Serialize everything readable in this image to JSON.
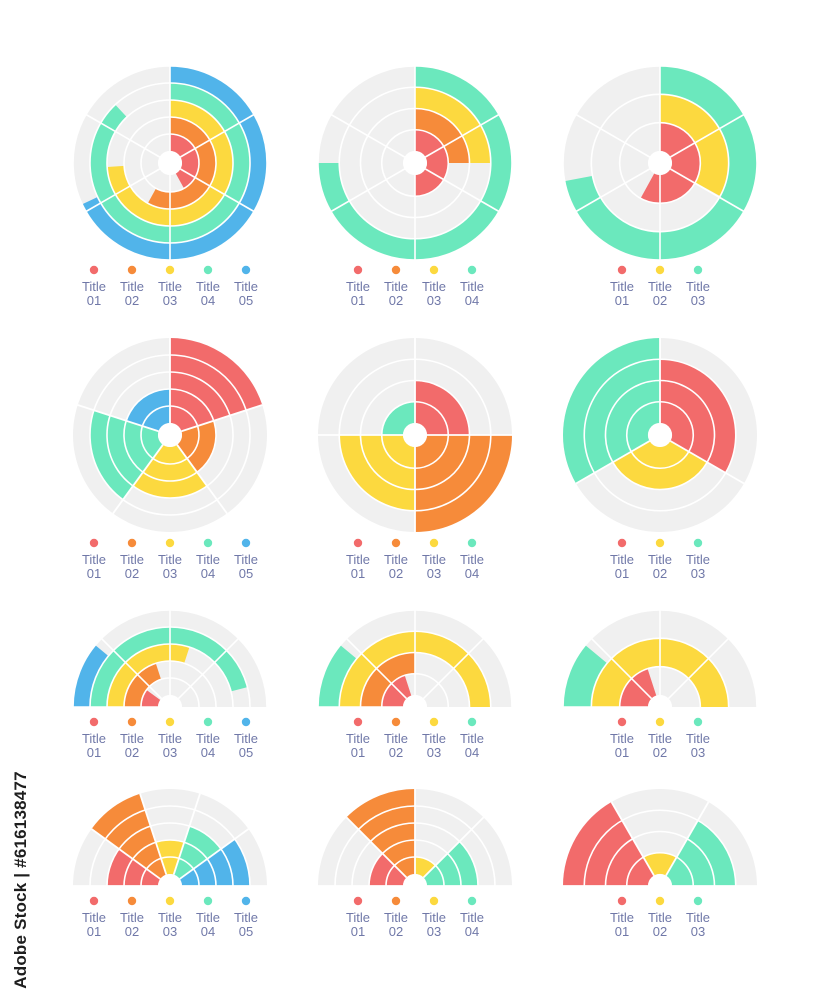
{
  "colors": {
    "red": "#f26b6b",
    "orange": "#f68b3a",
    "yellow": "#fcd93f",
    "green": "#6be8bd",
    "blue": "#51b4ea",
    "track": "#f0f0f0",
    "divider": "#ffffff",
    "label": "#7078a8"
  },
  "watermark_id": "Adobe Stock | #616138477",
  "chart_data": [
    {
      "id": "radial-5",
      "type": "radial-bar",
      "series": [
        {
          "color": "red",
          "value": 0.42
        },
        {
          "color": "orange",
          "value": 0.58
        },
        {
          "color": "yellow",
          "value": 0.74
        },
        {
          "color": "green",
          "value": 0.88
        },
        {
          "color": "blue",
          "value": 0.68
        }
      ],
      "legend": [
        "Title\n01",
        "Title\n02",
        "Title\n03",
        "Title\n04",
        "Title\n05"
      ]
    },
    {
      "id": "radial-4",
      "type": "radial-bar",
      "series": [
        {
          "color": "red",
          "value": 0.5
        },
        {
          "color": "orange",
          "value": 0.25
        },
        {
          "color": "yellow",
          "value": 0.25
        },
        {
          "color": "green",
          "value": 0.75
        }
      ],
      "legend": [
        "Title\n01",
        "Title\n02",
        "Title\n03",
        "Title\n04"
      ]
    },
    {
      "id": "radial-3",
      "type": "radial-bar",
      "series": [
        {
          "color": "red",
          "value": 0.58
        },
        {
          "color": "yellow",
          "value": 0.33
        },
        {
          "color": "green",
          "value": 0.72
        }
      ],
      "legend": [
        "Title\n01",
        "Title\n02",
        "Title\n03"
      ]
    },
    {
      "id": "polar-5",
      "type": "polar-area",
      "levels": 5,
      "series": [
        {
          "color": "red",
          "value": 5
        },
        {
          "color": "orange",
          "value": 2
        },
        {
          "color": "yellow",
          "value": 3
        },
        {
          "color": "green",
          "value": 4
        },
        {
          "color": "blue",
          "value": 2
        }
      ],
      "legend": [
        "Title\n01",
        "Title\n02",
        "Title\n03",
        "Title\n04",
        "Title\n05"
      ]
    },
    {
      "id": "polar-4",
      "type": "polar-area",
      "levels": 4,
      "series": [
        {
          "color": "red",
          "value": 2
        },
        {
          "color": "orange",
          "value": 4
        },
        {
          "color": "yellow",
          "value": 3
        },
        {
          "color": "green",
          "value": 1
        }
      ],
      "legend": [
        "Title\n01",
        "Title\n02",
        "Title\n03",
        "Title\n04"
      ]
    },
    {
      "id": "polar-3",
      "type": "polar-area",
      "levels": 4,
      "series": [
        {
          "color": "red",
          "value": 3
        },
        {
          "color": "yellow",
          "value": 2
        },
        {
          "color": "green",
          "value": 4
        }
      ],
      "legend": [
        "Title\n01",
        "Title\n02",
        "Title\n03"
      ]
    },
    {
      "id": "semi-radial-5",
      "type": "semi-radial-bar",
      "series": [
        {
          "color": "red",
          "value": 0.2
        },
        {
          "color": "orange",
          "value": 0.4
        },
        {
          "color": "yellow",
          "value": 0.6
        },
        {
          "color": "green",
          "value": 0.92
        },
        {
          "color": "blue",
          "value": 0.22
        }
      ],
      "legend": [
        "Title\n01",
        "Title\n02",
        "Title\n03",
        "Title\n04",
        "Title\n05"
      ]
    },
    {
      "id": "semi-radial-4",
      "type": "semi-radial-bar",
      "series": [
        {
          "color": "red",
          "value": 0.4
        },
        {
          "color": "orange",
          "value": 0.5
        },
        {
          "color": "yellow",
          "value": 1.0
        },
        {
          "color": "green",
          "value": 0.22
        }
      ],
      "legend": [
        "Title\n01",
        "Title\n02",
        "Title\n03",
        "Title\n04"
      ]
    },
    {
      "id": "semi-radial-3",
      "type": "semi-radial-bar",
      "series": [
        {
          "color": "red",
          "value": 0.4
        },
        {
          "color": "yellow",
          "value": 1.0
        },
        {
          "color": "green",
          "value": 0.22
        }
      ],
      "legend": [
        "Title\n01",
        "Title\n02",
        "Title\n03"
      ]
    },
    {
      "id": "semi-polar-5",
      "type": "semi-polar-area",
      "levels": 5,
      "series": [
        {
          "color": "red",
          "value": 3
        },
        {
          "color": "orange",
          "value": 5
        },
        {
          "color": "yellow",
          "value": 2
        },
        {
          "color": "green",
          "value": 3
        },
        {
          "color": "blue",
          "value": 4
        }
      ],
      "legend": [
        "Title\n01",
        "Title\n02",
        "Title\n03",
        "Title\n04",
        "Title\n05"
      ]
    },
    {
      "id": "semi-polar-4",
      "type": "semi-polar-area",
      "levels": 5,
      "series": [
        {
          "color": "red",
          "value": 2
        },
        {
          "color": "orange",
          "value": 5
        },
        {
          "color": "yellow",
          "value": 1
        },
        {
          "color": "green",
          "value": 3
        }
      ],
      "legend": [
        "Title\n01",
        "Title\n02",
        "Title\n03",
        "Title\n04"
      ]
    },
    {
      "id": "semi-polar-3",
      "type": "semi-polar-area",
      "levels": 4,
      "series": [
        {
          "color": "red",
          "value": 4
        },
        {
          "color": "yellow",
          "value": 1
        },
        {
          "color": "green",
          "value": 3
        }
      ],
      "legend": [
        "Title\n01",
        "Title\n02",
        "Title\n03"
      ]
    }
  ]
}
